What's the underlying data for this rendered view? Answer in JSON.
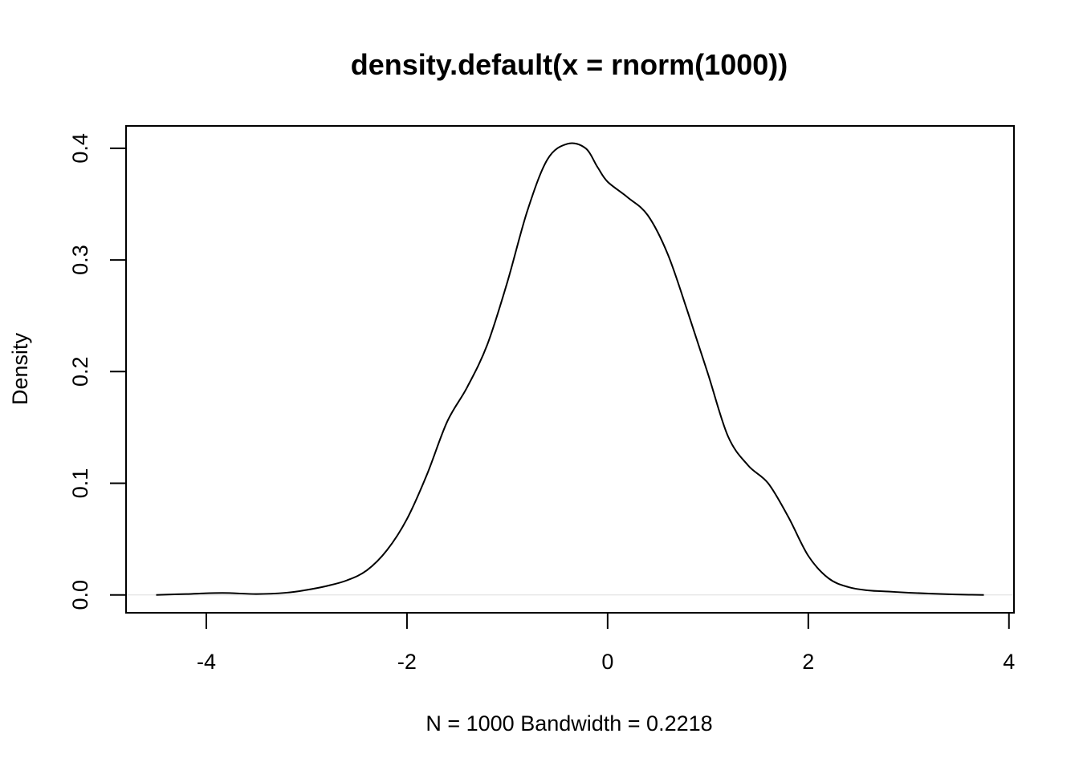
{
  "chart_data": {
    "type": "line",
    "title": "density.default(x = rnorm(1000))",
    "xlabel": "N = 1000   Bandwidth = 0.2218",
    "ylabel": "Density",
    "xlim": [
      -4.8,
      4.05
    ],
    "ylim": [
      -0.016,
      0.42
    ],
    "x_ticks": [
      -4,
      -2,
      0,
      2,
      4
    ],
    "x_tick_labels": [
      "-4",
      "-2",
      "0",
      "2",
      "4"
    ],
    "y_ticks": [
      0.0,
      0.1,
      0.2,
      0.3,
      0.4
    ],
    "y_tick_labels": [
      "0.0",
      "0.1",
      "0.2",
      "0.3",
      "0.4"
    ],
    "grid": false,
    "line_color": "#000000",
    "zero_line_color": "#dddddd",
    "series": [
      {
        "x": [
          -4.5,
          -4.2,
          -3.84,
          -3.5,
          -3.2,
          -3.0,
          -2.8,
          -2.6,
          -2.4,
          -2.2,
          -2.0,
          -1.8,
          -1.6,
          -1.4,
          -1.2,
          -1.0,
          -0.8,
          -0.6,
          -0.4,
          -0.22,
          -0.1,
          0.0,
          0.2,
          0.4,
          0.6,
          0.8,
          1.0,
          1.2,
          1.4,
          1.6,
          1.8,
          2.0,
          2.2,
          2.4,
          2.6,
          2.8,
          3.0,
          3.2,
          3.4,
          3.6,
          3.75
        ],
        "y": [
          0.0,
          0.0008,
          0.0018,
          0.0008,
          0.002,
          0.0045,
          0.008,
          0.013,
          0.022,
          0.04,
          0.068,
          0.108,
          0.155,
          0.186,
          0.224,
          0.28,
          0.344,
          0.39,
          0.404,
          0.4,
          0.383,
          0.37,
          0.356,
          0.34,
          0.305,
          0.253,
          0.198,
          0.142,
          0.116,
          0.1,
          0.07,
          0.035,
          0.015,
          0.007,
          0.004,
          0.003,
          0.002,
          0.0012,
          0.0006,
          0.0002,
          0.0
        ]
      }
    ]
  }
}
